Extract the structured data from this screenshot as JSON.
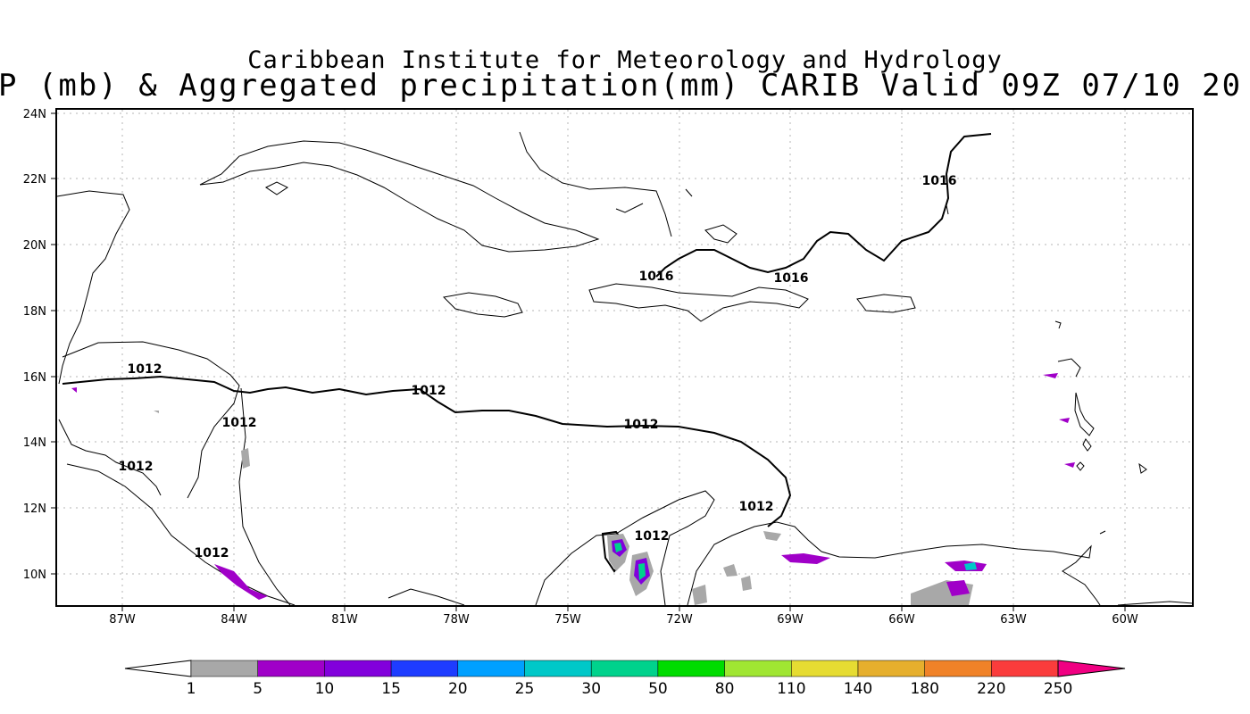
{
  "header": {
    "institute": "Caribbean Institute for Meteorology and Hydrology",
    "product": "P (mb) & Aggregated precipitation(mm) CARIB Valid 09Z 07/10 20"
  },
  "map": {
    "lat_labels": [
      "24N",
      "22N",
      "20N",
      "18N",
      "16N",
      "14N",
      "12N",
      "10N"
    ],
    "lon_labels": [
      "87W",
      "84W",
      "81W",
      "78W",
      "75W",
      "72W",
      "69W",
      "66W",
      "63W",
      "60W"
    ],
    "isobars": [
      {
        "id": "a",
        "label": "1016"
      },
      {
        "id": "b",
        "label": "1016"
      },
      {
        "id": "c",
        "label": "1016"
      },
      {
        "id": "d",
        "label": "1012"
      },
      {
        "id": "e",
        "label": "1012"
      },
      {
        "id": "f",
        "label": "1012"
      },
      {
        "id": "g",
        "label": "1012"
      },
      {
        "id": "h",
        "label": "1012"
      },
      {
        "id": "i",
        "label": "1012"
      },
      {
        "id": "j",
        "label": "1012"
      },
      {
        "id": "k",
        "label": "1012"
      }
    ]
  },
  "colorbar": {
    "ticks": [
      "1",
      "5",
      "10",
      "15",
      "20",
      "25",
      "30",
      "50",
      "80",
      "110",
      "140",
      "180",
      "220",
      "250"
    ],
    "colors": [
      "#a8a8a8",
      "#a000c8",
      "#8200dc",
      "#1e3cff",
      "#00a0ff",
      "#00c8c8",
      "#00d28c",
      "#00dc00",
      "#a0e632",
      "#e6dc32",
      "#e6af2d",
      "#f08228",
      "#fa3c3c",
      "#f00082"
    ]
  }
}
